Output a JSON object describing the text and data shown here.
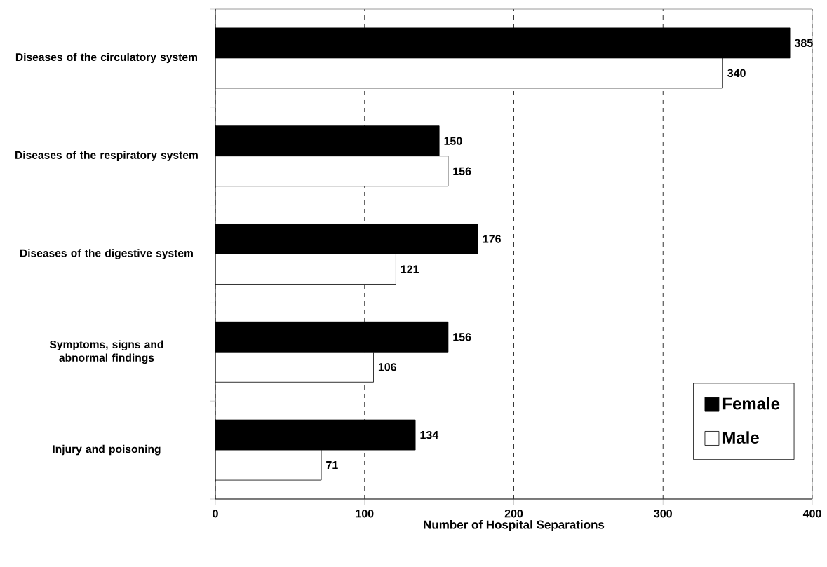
{
  "chart_data": {
    "type": "bar",
    "orientation": "horizontal",
    "xlabel": "Number of Hospital Separations",
    "categories": [
      "Diseases of the circulatory system",
      "Diseases of the respiratory system",
      "Diseases of the digestive system",
      "Symptoms, signs and abnormal findings",
      "Injury and poisoning"
    ],
    "series": [
      {
        "name": "Female",
        "color": "#000000",
        "values": [
          385,
          150,
          176,
          156,
          134
        ]
      },
      {
        "name": "Male",
        "color": "#ffffff",
        "values": [
          340,
          156,
          121,
          106,
          71
        ]
      }
    ],
    "xlim": [
      0,
      400
    ],
    "xticks": [
      0,
      100,
      200,
      300,
      400
    ],
    "grid": "x",
    "legend": "bottom right",
    "data_labels": true
  }
}
